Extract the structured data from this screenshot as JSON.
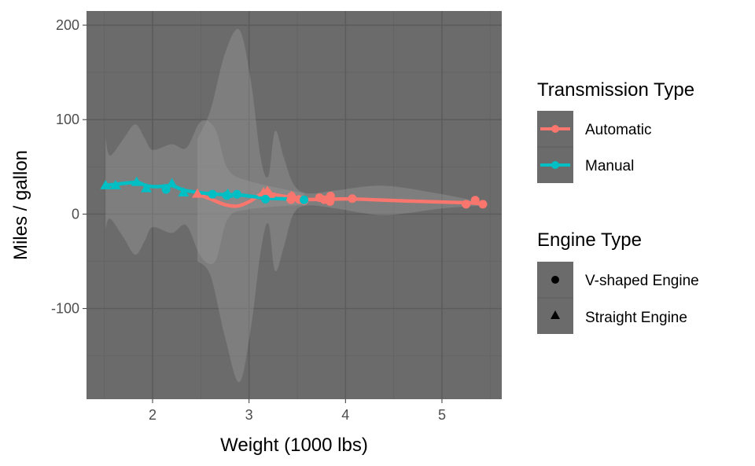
{
  "chart_data": {
    "type": "scatter",
    "title": "",
    "xlabel": "Weight (1000 lbs)",
    "ylabel": "Miles / gallon",
    "xlim": [
      1.315,
      5.62
    ],
    "ylim": [
      -196,
      215
    ],
    "xticks": [
      2,
      3,
      4,
      5
    ],
    "yticks": [
      -100,
      0,
      100,
      200
    ],
    "xtick_labels": [
      "2",
      "3",
      "4",
      "5"
    ],
    "ytick_labels": [
      "-100",
      "0",
      "100",
      "200"
    ],
    "grid": true,
    "legend_position": "right",
    "colors": {
      "panel": "#6b6b6b",
      "grid_major": "#5c5c5c",
      "grid_minor": "#646464",
      "ribbon": "#8a8a8a",
      "Automatic": "#F8766D",
      "Manual": "#00BFC4"
    },
    "legends": [
      {
        "title": "Transmission Type",
        "entries": [
          "Automatic",
          "Manual"
        ]
      },
      {
        "title": "Engine Type",
        "entries": [
          "V-shaped Engine",
          "Straight Engine"
        ]
      }
    ],
    "points": [
      {
        "wt": 2.62,
        "mpg": 21.0,
        "am": "Manual",
        "vs": "V-shaped Engine"
      },
      {
        "wt": 2.875,
        "mpg": 21.0,
        "am": "Manual",
        "vs": "V-shaped Engine"
      },
      {
        "wt": 2.32,
        "mpg": 22.8,
        "am": "Manual",
        "vs": "Straight Engine"
      },
      {
        "wt": 3.215,
        "mpg": 21.4,
        "am": "Automatic",
        "vs": "Straight Engine"
      },
      {
        "wt": 3.44,
        "mpg": 18.7,
        "am": "Automatic",
        "vs": "V-shaped Engine"
      },
      {
        "wt": 3.46,
        "mpg": 18.1,
        "am": "Automatic",
        "vs": "Straight Engine"
      },
      {
        "wt": 3.57,
        "mpg": 14.3,
        "am": "Automatic",
        "vs": "V-shaped Engine"
      },
      {
        "wt": 3.19,
        "mpg": 24.4,
        "am": "Automatic",
        "vs": "Straight Engine"
      },
      {
        "wt": 3.15,
        "mpg": 22.8,
        "am": "Automatic",
        "vs": "Straight Engine"
      },
      {
        "wt": 3.44,
        "mpg": 19.2,
        "am": "Automatic",
        "vs": "Straight Engine"
      },
      {
        "wt": 3.44,
        "mpg": 17.8,
        "am": "Automatic",
        "vs": "Straight Engine"
      },
      {
        "wt": 4.07,
        "mpg": 16.4,
        "am": "Automatic",
        "vs": "V-shaped Engine"
      },
      {
        "wt": 3.73,
        "mpg": 17.3,
        "am": "Automatic",
        "vs": "V-shaped Engine"
      },
      {
        "wt": 3.78,
        "mpg": 15.2,
        "am": "Automatic",
        "vs": "V-shaped Engine"
      },
      {
        "wt": 5.25,
        "mpg": 10.4,
        "am": "Automatic",
        "vs": "V-shaped Engine"
      },
      {
        "wt": 5.424,
        "mpg": 10.4,
        "am": "Automatic",
        "vs": "V-shaped Engine"
      },
      {
        "wt": 5.345,
        "mpg": 14.7,
        "am": "Automatic",
        "vs": "V-shaped Engine"
      },
      {
        "wt": 2.2,
        "mpg": 32.4,
        "am": "Manual",
        "vs": "Straight Engine"
      },
      {
        "wt": 1.615,
        "mpg": 30.4,
        "am": "Manual",
        "vs": "Straight Engine"
      },
      {
        "wt": 1.835,
        "mpg": 33.9,
        "am": "Manual",
        "vs": "Straight Engine"
      },
      {
        "wt": 2.465,
        "mpg": 21.5,
        "am": "Automatic",
        "vs": "Straight Engine"
      },
      {
        "wt": 3.52,
        "mpg": 15.5,
        "am": "Automatic",
        "vs": "V-shaped Engine"
      },
      {
        "wt": 3.435,
        "mpg": 15.2,
        "am": "Automatic",
        "vs": "V-shaped Engine"
      },
      {
        "wt": 3.84,
        "mpg": 13.3,
        "am": "Automatic",
        "vs": "V-shaped Engine"
      },
      {
        "wt": 3.845,
        "mpg": 19.2,
        "am": "Automatic",
        "vs": "V-shaped Engine"
      },
      {
        "wt": 1.935,
        "mpg": 27.3,
        "am": "Manual",
        "vs": "Straight Engine"
      },
      {
        "wt": 2.14,
        "mpg": 26.0,
        "am": "Manual",
        "vs": "V-shaped Engine"
      },
      {
        "wt": 1.513,
        "mpg": 30.4,
        "am": "Manual",
        "vs": "Straight Engine"
      },
      {
        "wt": 3.17,
        "mpg": 15.8,
        "am": "Manual",
        "vs": "V-shaped Engine"
      },
      {
        "wt": 2.77,
        "mpg": 19.7,
        "am": "Manual",
        "vs": "V-shaped Engine"
      },
      {
        "wt": 3.57,
        "mpg": 15.0,
        "am": "Manual",
        "vs": "V-shaped Engine"
      },
      {
        "wt": 2.78,
        "mpg": 21.4,
        "am": "Manual",
        "vs": "Straight Engine"
      }
    ],
    "smooth": [
      {
        "name": "Automatic",
        "line": [
          [
            2.465,
            21.5
          ],
          [
            2.6,
            16
          ],
          [
            2.75,
            10
          ],
          [
            2.88,
            8.5
          ],
          [
            3.0,
            13
          ],
          [
            3.12,
            21
          ],
          [
            3.19,
            23.5
          ],
          [
            3.25,
            21
          ],
          [
            3.44,
            17.5
          ],
          [
            3.57,
            15.5
          ],
          [
            3.84,
            15.8
          ],
          [
            4.07,
            16
          ],
          [
            4.6,
            14
          ],
          [
            5.25,
            12
          ],
          [
            5.424,
            10.8
          ]
        ],
        "ribbon": [
          [
            2.465,
            -50,
            80
          ],
          [
            2.6,
            -65,
            110
          ],
          [
            2.75,
            -130,
            170
          ],
          [
            2.9,
            -178,
            195
          ],
          [
            3.02,
            -120,
            140
          ],
          [
            3.12,
            -40,
            60
          ],
          [
            3.2,
            -10,
            40
          ],
          [
            3.27,
            -60,
            88
          ],
          [
            3.36,
            -35,
            60
          ],
          [
            3.46,
            0,
            32
          ],
          [
            3.6,
            9,
            22
          ],
          [
            3.9,
            6,
            25
          ],
          [
            4.4,
            -1,
            30
          ],
          [
            5.0,
            6,
            21
          ],
          [
            5.424,
            9,
            12
          ]
        ]
      },
      {
        "name": "Manual",
        "line": [
          [
            1.513,
            30.4
          ],
          [
            1.615,
            31.5
          ],
          [
            1.835,
            33.5
          ],
          [
            1.935,
            30
          ],
          [
            2.05,
            29
          ],
          [
            2.2,
            30
          ],
          [
            2.32,
            25.5
          ],
          [
            2.47,
            23
          ],
          [
            2.62,
            21.3
          ],
          [
            2.78,
            20.5
          ],
          [
            2.9,
            20.3
          ],
          [
            3.17,
            17
          ],
          [
            3.4,
            16
          ],
          [
            3.57,
            15.3
          ]
        ],
        "ribbon": [
          [
            1.513,
            -15,
            80
          ],
          [
            1.56,
            -5,
            62
          ],
          [
            1.7,
            -25,
            80
          ],
          [
            1.82,
            -43,
            95
          ],
          [
            1.92,
            -28,
            80
          ],
          [
            2.0,
            -14,
            68
          ],
          [
            2.2,
            -20,
            74
          ],
          [
            2.35,
            -12,
            70
          ],
          [
            2.5,
            -45,
            98
          ],
          [
            2.65,
            -50,
            90
          ],
          [
            2.78,
            -5,
            48
          ],
          [
            3.0,
            5,
            35
          ],
          [
            3.57,
            10,
            22
          ]
        ]
      }
    ]
  }
}
